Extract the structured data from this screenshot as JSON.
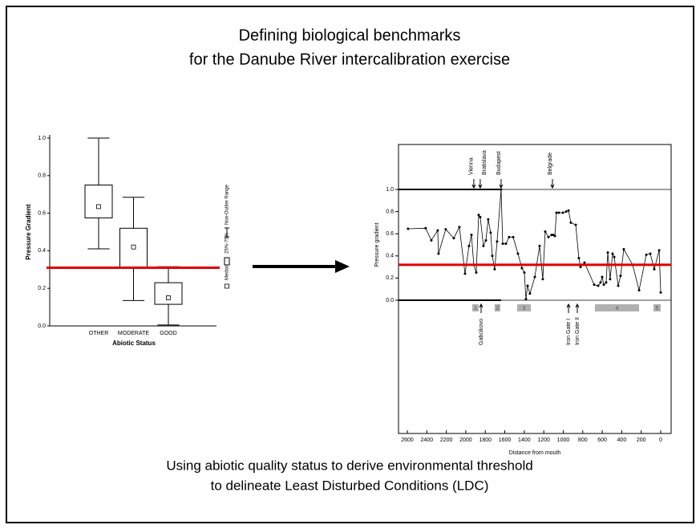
{
  "title": [
    "Defining biological benchmarks",
    "for the Danube River intercalibration exercise"
  ],
  "caption": [
    "Using abiotic quality status to derive environmental threshold",
    "to delineate Least Disturbed Conditions (LDC)"
  ],
  "chart_data": [
    {
      "type": "box",
      "x_label": "Abiotic Status",
      "y_label": "Pressure Gradient",
      "categories": [
        "OTHER",
        "MODERATE",
        "GOOD"
      ],
      "min": [
        0.41,
        0.135,
        0.005
      ],
      "q1": [
        0.575,
        0.31,
        0.115
      ],
      "median": [
        0.635,
        0.42,
        0.15
      ],
      "q3": [
        0.75,
        0.52,
        0.23
      ],
      "max": [
        1.0,
        0.685,
        0.315
      ],
      "legend": [
        "Median",
        "25%-75%",
        "Non-Outlier Range"
      ],
      "threshold": 0.31,
      "threshold_color": "#e00000",
      "ylim": [
        0,
        1
      ],
      "yticks": [
        {
          "value": 0,
          "label": "0.0"
        },
        {
          "value": 0.2,
          "label": "0.2"
        },
        {
          "value": 0.4,
          "label": "0.4"
        },
        {
          "value": 0.6,
          "label": "0.6"
        },
        {
          "value": 0.8,
          "label": "0.8"
        },
        {
          "value": 1,
          "label": "1.0"
        }
      ]
    },
    {
      "type": "line",
      "x_label": "Distance from mouth",
      "y_label": "Pressure gradient",
      "x": [
        2593,
        2412,
        2354,
        2288,
        2280,
        2206,
        2123,
        2066,
        2008,
        1967,
        1942,
        1918,
        1893,
        1868,
        1852,
        1819,
        1794,
        1770,
        1745,
        1728,
        1704,
        1679,
        1638,
        1621,
        1588,
        1556,
        1514,
        1465,
        1424,
        1399,
        1383,
        1366,
        1342,
        1292,
        1243,
        1210,
        1185,
        1152,
        1119,
        1103,
        1086,
        1070,
        1045,
        1004,
        971,
        946,
        922,
        872,
        840,
        823,
        782,
        683,
        642,
        617,
        601,
        584,
        560,
        543,
        519,
        494,
        477,
        436,
        412,
        379,
        288,
        222,
        148,
        107,
        66,
        16,
        0
      ],
      "series": [
        {
          "color": "#000000",
          "values": [
            0.645,
            0.65,
            0.54,
            0.63,
            0.42,
            0.64,
            0.56,
            0.66,
            0.24,
            0.49,
            0.59,
            0.32,
            0.25,
            0.77,
            0.75,
            0.49,
            0.54,
            0.73,
            0.61,
            0.4,
            0.28,
            0.53,
            1.0,
            0.51,
            0.51,
            0.57,
            0.57,
            0.42,
            0.29,
            0.25,
            0.01,
            0.13,
            0.06,
            0.21,
            0.49,
            0.19,
            0.62,
            0.57,
            0.59,
            0.59,
            0.58,
            0.79,
            0.79,
            0.79,
            0.8,
            0.81,
            0.7,
            0.68,
            0.38,
            0.3,
            0.34,
            0.14,
            0.13,
            0.16,
            0.21,
            0.14,
            0.16,
            0.43,
            0.19,
            0.42,
            0.39,
            0.13,
            0.22,
            0.46,
            0.32,
            0.09,
            0.41,
            0.42,
            0.28,
            0.45,
            0.07
          ]
        }
      ],
      "threshold": 0.32,
      "threshold_color": "#e00000",
      "xlim": [
        2600,
        0
      ],
      "xticks": [
        2600,
        2400,
        2200,
        2000,
        1800,
        1600,
        1400,
        1200,
        1000,
        800,
        600,
        400,
        200,
        0
      ],
      "ylim": [
        0,
        1
      ],
      "yticks": [
        {
          "value": 0,
          "label": "0.0"
        },
        {
          "value": 0.2,
          "label": "0.2"
        },
        {
          "value": 0.4,
          "label": "0.4"
        },
        {
          "value": 0.6,
          "label": "0.6"
        },
        {
          "value": 0.8,
          "label": "0.8"
        },
        {
          "value": 1,
          "label": "1.0"
        }
      ],
      "cities_top": [
        {
          "label": "Vienna",
          "x": 1918
        },
        {
          "label": "Bratislava",
          "x": 1852
        },
        {
          "label": "Budapest",
          "x": 1638
        },
        {
          "label": "Belgrade",
          "x": 1111
        }
      ],
      "cities_bottom": [
        {
          "label": "Gabcikovo",
          "x": 1843
        },
        {
          "label": "Iron Gate I",
          "x": 946
        },
        {
          "label": "Iron Gate II",
          "x": 856
        }
      ],
      "sections": [
        {
          "label": "1",
          "from": 1934,
          "to": 1868
        },
        {
          "label": "2",
          "from": 1704,
          "to": 1646
        },
        {
          "label": "3",
          "from": 1473,
          "to": 1333
        },
        {
          "label": "4",
          "from": 675,
          "to": 222
        },
        {
          "label": "5",
          "from": 74,
          "to": 0
        }
      ]
    }
  ]
}
